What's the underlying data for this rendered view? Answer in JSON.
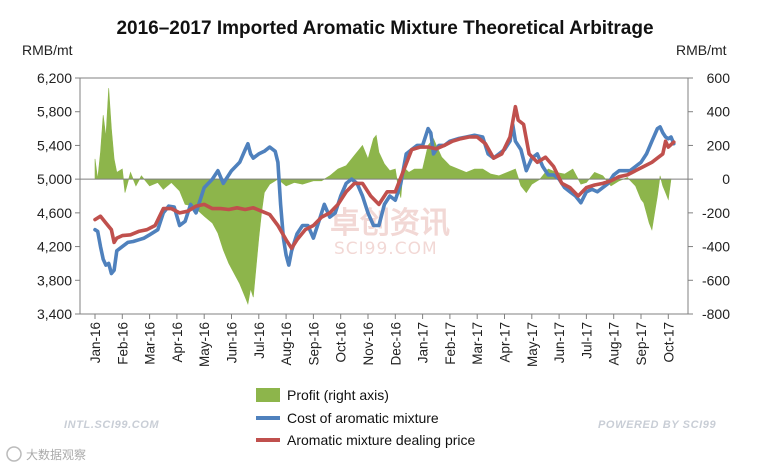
{
  "chart_data": {
    "type": "line",
    "title": "2016–2017 Imported Aromatic Mixture Theoretical Arbitrage",
    "left_axis_label": "RMB/mt",
    "right_axis_label": "RMB/mt",
    "left_ylim": [
      3400,
      6200
    ],
    "right_ylim": [
      -800,
      600
    ],
    "left_ticks": [
      "3,400",
      "3,800",
      "4,200",
      "4,600",
      "5,000",
      "5,400",
      "5,800",
      "6,200"
    ],
    "right_ticks": [
      "-800",
      "-600",
      "-400",
      "-200",
      "0",
      "200",
      "400",
      "600"
    ],
    "x_ticks": [
      "Jan-16",
      "Feb-16",
      "Mar-16",
      "Apr-16",
      "May-16",
      "Jun-16",
      "Jul-16",
      "Aug-16",
      "Sep-16",
      "Oct-16",
      "Nov-16",
      "Dec-16",
      "Jan-17",
      "Feb-17",
      "Mar-17",
      "Apr-17",
      "May-17",
      "Jun-17",
      "Jul-17",
      "Aug-17",
      "Sep-17",
      "Oct-17"
    ],
    "series": [
      {
        "name": "Profit (right axis)",
        "kind": "area",
        "axis": "right",
        "color": "#8db54b",
        "points": [
          [
            0,
            120
          ],
          [
            0.1,
            0
          ],
          [
            0.2,
            160
          ],
          [
            0.3,
            380
          ],
          [
            0.4,
            250
          ],
          [
            0.5,
            540
          ],
          [
            0.6,
            300
          ],
          [
            0.7,
            120
          ],
          [
            0.8,
            40
          ],
          [
            1.0,
            60
          ],
          [
            1.1,
            -80
          ],
          [
            1.3,
            40
          ],
          [
            1.5,
            -40
          ],
          [
            1.7,
            20
          ],
          [
            2.0,
            -40
          ],
          [
            2.3,
            -20
          ],
          [
            2.5,
            -60
          ],
          [
            2.8,
            -20
          ],
          [
            3.1,
            -70
          ],
          [
            3.3,
            -150
          ],
          [
            3.6,
            -160
          ],
          [
            4.0,
            -220
          ],
          [
            4.3,
            -260
          ],
          [
            4.5,
            -320
          ],
          [
            4.7,
            -420
          ],
          [
            4.9,
            -500
          ],
          [
            5.1,
            -560
          ],
          [
            5.3,
            -620
          ],
          [
            5.5,
            -700
          ],
          [
            5.6,
            -740
          ],
          [
            5.7,
            -650
          ],
          [
            5.8,
            -700
          ],
          [
            5.9,
            -520
          ],
          [
            6.0,
            -350
          ],
          [
            6.1,
            -200
          ],
          [
            6.2,
            -80
          ],
          [
            6.4,
            -30
          ],
          [
            6.7,
            0
          ],
          [
            7.0,
            -40
          ],
          [
            7.3,
            -20
          ],
          [
            7.6,
            -30
          ],
          [
            8.0,
            -10
          ],
          [
            8.3,
            -10
          ],
          [
            8.6,
            20
          ],
          [
            8.9,
            60
          ],
          [
            9.2,
            80
          ],
          [
            9.5,
            140
          ],
          [
            9.8,
            200
          ],
          [
            10.0,
            120
          ],
          [
            10.2,
            240
          ],
          [
            10.3,
            260
          ],
          [
            10.4,
            160
          ],
          [
            10.6,
            90
          ],
          [
            10.8,
            50
          ],
          [
            11.0,
            60
          ],
          [
            11.1,
            -40
          ],
          [
            11.2,
            -110
          ],
          [
            11.3,
            70
          ],
          [
            11.5,
            40
          ],
          [
            11.7,
            60
          ],
          [
            12.0,
            60
          ],
          [
            12.2,
            200
          ],
          [
            12.4,
            240
          ],
          [
            12.5,
            200
          ],
          [
            12.7,
            130
          ],
          [
            13.0,
            80
          ],
          [
            13.3,
            60
          ],
          [
            13.6,
            40
          ],
          [
            13.9,
            60
          ],
          [
            14.2,
            60
          ],
          [
            14.5,
            30
          ],
          [
            14.8,
            20
          ],
          [
            15.1,
            40
          ],
          [
            15.4,
            60
          ],
          [
            15.6,
            -40
          ],
          [
            15.8,
            -80
          ],
          [
            16.0,
            -30
          ],
          [
            16.3,
            0
          ],
          [
            16.6,
            60
          ],
          [
            16.9,
            40
          ],
          [
            17.2,
            30
          ],
          [
            17.5,
            60
          ],
          [
            17.8,
            -30
          ],
          [
            18.0,
            -20
          ],
          [
            18.3,
            40
          ],
          [
            18.6,
            20
          ],
          [
            18.9,
            -40
          ],
          [
            19.2,
            -10
          ],
          [
            19.5,
            10
          ],
          [
            19.8,
            -40
          ],
          [
            20.0,
            -120
          ],
          [
            20.1,
            -140
          ],
          [
            20.2,
            -200
          ],
          [
            20.3,
            -260
          ],
          [
            20.4,
            -300
          ],
          [
            20.5,
            -200
          ],
          [
            20.6,
            -100
          ],
          [
            20.7,
            20
          ],
          [
            20.8,
            -40
          ],
          [
            20.9,
            -80
          ],
          [
            21.0,
            -120
          ],
          [
            21.1,
            0
          ]
        ]
      },
      {
        "name": "Cost of aromatic mixture",
        "kind": "line",
        "axis": "left",
        "color": "#4f81bd",
        "points": [
          [
            0,
            4400
          ],
          [
            0.1,
            4380
          ],
          [
            0.2,
            4200
          ],
          [
            0.3,
            4050
          ],
          [
            0.4,
            3980
          ],
          [
            0.5,
            4000
          ],
          [
            0.6,
            3880
          ],
          [
            0.7,
            3920
          ],
          [
            0.8,
            4150
          ],
          [
            1.0,
            4200
          ],
          [
            1.2,
            4250
          ],
          [
            1.4,
            4260
          ],
          [
            1.6,
            4280
          ],
          [
            1.8,
            4300
          ],
          [
            2.0,
            4340
          ],
          [
            2.3,
            4400
          ],
          [
            2.5,
            4600
          ],
          [
            2.7,
            4680
          ],
          [
            2.9,
            4670
          ],
          [
            3.1,
            4450
          ],
          [
            3.3,
            4500
          ],
          [
            3.5,
            4700
          ],
          [
            3.7,
            4600
          ],
          [
            4.0,
            4900
          ],
          [
            4.3,
            5000
          ],
          [
            4.5,
            5100
          ],
          [
            4.7,
            4950
          ],
          [
            5.0,
            5100
          ],
          [
            5.3,
            5200
          ],
          [
            5.5,
            5350
          ],
          [
            5.6,
            5420
          ],
          [
            5.7,
            5300
          ],
          [
            5.8,
            5250
          ],
          [
            6.0,
            5300
          ],
          [
            6.2,
            5330
          ],
          [
            6.4,
            5380
          ],
          [
            6.6,
            5330
          ],
          [
            6.7,
            5200
          ],
          [
            6.8,
            4700
          ],
          [
            6.9,
            4300
          ],
          [
            7.0,
            4100
          ],
          [
            7.1,
            3980
          ],
          [
            7.2,
            4150
          ],
          [
            7.4,
            4350
          ],
          [
            7.6,
            4450
          ],
          [
            7.8,
            4450
          ],
          [
            8.0,
            4300
          ],
          [
            8.2,
            4500
          ],
          [
            8.4,
            4700
          ],
          [
            8.6,
            4550
          ],
          [
            8.8,
            4600
          ],
          [
            9.0,
            4800
          ],
          [
            9.2,
            4950
          ],
          [
            9.4,
            5000
          ],
          [
            9.6,
            4950
          ],
          [
            9.8,
            4800
          ],
          [
            10.0,
            4600
          ],
          [
            10.2,
            4450
          ],
          [
            10.4,
            4450
          ],
          [
            10.6,
            4700
          ],
          [
            10.8,
            4800
          ],
          [
            11.0,
            4750
          ],
          [
            11.2,
            4950
          ],
          [
            11.4,
            5300
          ],
          [
            11.6,
            5350
          ],
          [
            11.8,
            5400
          ],
          [
            12.0,
            5400
          ],
          [
            12.2,
            5600
          ],
          [
            12.3,
            5550
          ],
          [
            12.4,
            5300
          ],
          [
            12.6,
            5400
          ],
          [
            12.8,
            5400
          ],
          [
            13.0,
            5450
          ],
          [
            13.3,
            5480
          ],
          [
            13.6,
            5500
          ],
          [
            13.9,
            5520
          ],
          [
            14.2,
            5500
          ],
          [
            14.4,
            5300
          ],
          [
            14.6,
            5250
          ],
          [
            14.8,
            5300
          ],
          [
            15.0,
            5350
          ],
          [
            15.2,
            5450
          ],
          [
            15.3,
            5650
          ],
          [
            15.4,
            5450
          ],
          [
            15.6,
            5350
          ],
          [
            15.8,
            5100
          ],
          [
            16.0,
            5250
          ],
          [
            16.2,
            5300
          ],
          [
            16.4,
            5150
          ],
          [
            16.6,
            5050
          ],
          [
            16.8,
            5050
          ],
          [
            17.0,
            5000
          ],
          [
            17.2,
            4900
          ],
          [
            17.4,
            4850
          ],
          [
            17.6,
            4800
          ],
          [
            17.8,
            4720
          ],
          [
            18.0,
            4850
          ],
          [
            18.2,
            4880
          ],
          [
            18.4,
            4850
          ],
          [
            18.6,
            4900
          ],
          [
            18.8,
            4950
          ],
          [
            19.0,
            5050
          ],
          [
            19.2,
            5100
          ],
          [
            19.4,
            5100
          ],
          [
            19.6,
            5100
          ],
          [
            19.8,
            5150
          ],
          [
            20.0,
            5200
          ],
          [
            20.2,
            5300
          ],
          [
            20.4,
            5450
          ],
          [
            20.6,
            5600
          ],
          [
            20.7,
            5620
          ],
          [
            20.8,
            5550
          ],
          [
            20.9,
            5500
          ],
          [
            21.0,
            5480
          ],
          [
            21.1,
            5500
          ],
          [
            21.2,
            5420
          ]
        ]
      },
      {
        "name": "Aromatic mixture dealing price",
        "kind": "line",
        "axis": "left",
        "color": "#c0504d",
        "points": [
          [
            0,
            4520
          ],
          [
            0.2,
            4560
          ],
          [
            0.4,
            4480
          ],
          [
            0.6,
            4400
          ],
          [
            0.7,
            4250
          ],
          [
            0.8,
            4300
          ],
          [
            1.0,
            4330
          ],
          [
            1.3,
            4340
          ],
          [
            1.6,
            4380
          ],
          [
            1.9,
            4400
          ],
          [
            2.2,
            4450
          ],
          [
            2.5,
            4650
          ],
          [
            2.8,
            4650
          ],
          [
            3.1,
            4600
          ],
          [
            3.4,
            4620
          ],
          [
            3.7,
            4680
          ],
          [
            4.0,
            4700
          ],
          [
            4.3,
            4650
          ],
          [
            4.6,
            4650
          ],
          [
            4.9,
            4640
          ],
          [
            5.2,
            4660
          ],
          [
            5.5,
            4640
          ],
          [
            5.8,
            4660
          ],
          [
            6.1,
            4620
          ],
          [
            6.4,
            4580
          ],
          [
            6.7,
            4450
          ],
          [
            7.0,
            4280
          ],
          [
            7.2,
            4180
          ],
          [
            7.4,
            4280
          ],
          [
            7.7,
            4400
          ],
          [
            8.0,
            4450
          ],
          [
            8.3,
            4550
          ],
          [
            8.6,
            4600
          ],
          [
            8.9,
            4700
          ],
          [
            9.2,
            4850
          ],
          [
            9.5,
            4950
          ],
          [
            9.8,
            4950
          ],
          [
            10.1,
            4800
          ],
          [
            10.4,
            4700
          ],
          [
            10.7,
            4850
          ],
          [
            11.0,
            4850
          ],
          [
            11.3,
            5100
          ],
          [
            11.6,
            5350
          ],
          [
            11.9,
            5380
          ],
          [
            12.2,
            5380
          ],
          [
            12.5,
            5360
          ],
          [
            12.8,
            5400
          ],
          [
            13.1,
            5450
          ],
          [
            13.4,
            5480
          ],
          [
            13.7,
            5500
          ],
          [
            14.0,
            5500
          ],
          [
            14.3,
            5420
          ],
          [
            14.6,
            5250
          ],
          [
            14.9,
            5300
          ],
          [
            15.2,
            5500
          ],
          [
            15.4,
            5860
          ],
          [
            15.5,
            5700
          ],
          [
            15.7,
            5650
          ],
          [
            15.9,
            5300
          ],
          [
            16.2,
            5200
          ],
          [
            16.5,
            5260
          ],
          [
            16.8,
            5150
          ],
          [
            17.1,
            4950
          ],
          [
            17.4,
            4900
          ],
          [
            17.7,
            4800
          ],
          [
            18.0,
            4900
          ],
          [
            18.3,
            4930
          ],
          [
            18.6,
            4950
          ],
          [
            18.9,
            4980
          ],
          [
            19.2,
            5030
          ],
          [
            19.5,
            5050
          ],
          [
            19.8,
            5100
          ],
          [
            20.1,
            5150
          ],
          [
            20.4,
            5200
          ],
          [
            20.6,
            5250
          ],
          [
            20.8,
            5300
          ],
          [
            20.9,
            5450
          ],
          [
            21.0,
            5380
          ],
          [
            21.2,
            5440
          ]
        ]
      }
    ]
  },
  "legend": {
    "profit": "Profit (right axis)",
    "cost": "Cost of aromatic mixture",
    "price": "Aromatic mixture dealing price"
  },
  "watermark": {
    "cn": "卓创资讯",
    "en": "SCI99.COM"
  },
  "footer": {
    "left": "INTL.SCI99.COM",
    "right": "POWERED BY SCI99"
  },
  "corner_mark": "大数据观察"
}
